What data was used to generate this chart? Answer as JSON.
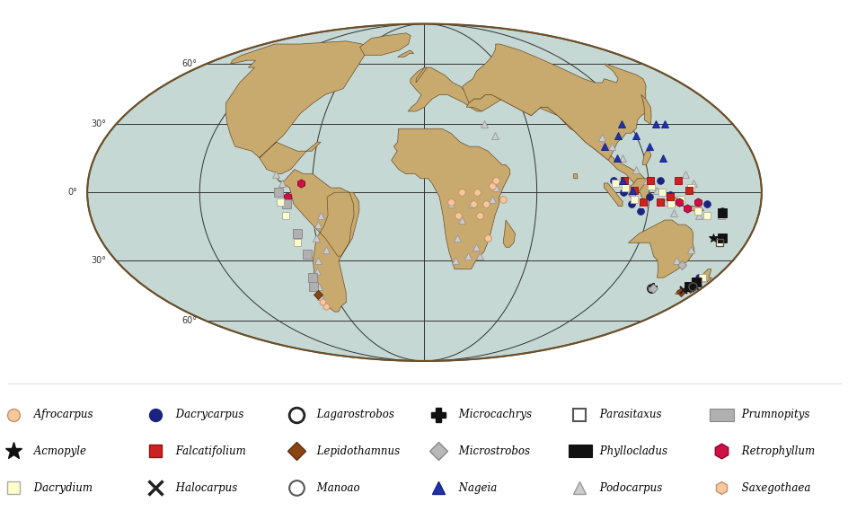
{
  "background_ocean": "#c5d8d4",
  "land_color": "#c8a96e",
  "land_edge_color": "#6b4f2a",
  "grid_color": "#333333",
  "legend_items": [
    {
      "name": "Afrocarpus",
      "marker": "o",
      "color": "#f5c89a",
      "mec": "#c8906a",
      "ms": 10,
      "mew": 1.0
    },
    {
      "name": "Dacrycarpus",
      "marker": "o",
      "color": "#1a237e",
      "mec": "#1a237e",
      "ms": 10,
      "mew": 1.0
    },
    {
      "name": "Lagarostrobos",
      "marker": "o",
      "color": "none",
      "mec": "#222222",
      "ms": 12,
      "mew": 2.0
    },
    {
      "name": "Microcachrys",
      "marker": "P",
      "color": "#111111",
      "mec": "#111111",
      "ms": 11,
      "mew": 1.0
    },
    {
      "name": "Parasitaxus",
      "marker": "s",
      "color": "none",
      "mec": "#555555",
      "ms": 10,
      "mew": 1.5
    },
    {
      "name": "Prumnopitys",
      "marker": "s",
      "color": "#b0b0b0",
      "mec": "#888888",
      "ms": 14,
      "mew": 1.0
    },
    {
      "name": "Acmopyle",
      "marker": "*",
      "color": "#111111",
      "mec": "#111111",
      "ms": 14,
      "mew": 1.0
    },
    {
      "name": "Falcatifolium",
      "marker": "s",
      "color": "#cc2222",
      "mec": "#991111",
      "ms": 10,
      "mew": 1.0
    },
    {
      "name": "Lepidothamnus",
      "marker": "D",
      "color": "#8b4513",
      "mec": "#5a2d0c",
      "ms": 10,
      "mew": 1.0
    },
    {
      "name": "Microstrobos",
      "marker": "D",
      "color": "#b8b8b8",
      "mec": "#888888",
      "ms": 10,
      "mew": 1.0
    },
    {
      "name": "Phyllocladus",
      "marker": "s",
      "color": "#111111",
      "mec": "#111111",
      "ms": 14,
      "mew": 1.0
    },
    {
      "name": "Retrophyllum",
      "marker": "h",
      "color": "#cc1144",
      "mec": "#990033",
      "ms": 12,
      "mew": 1.0
    },
    {
      "name": "Dacrydium",
      "marker": "s",
      "color": "#ffffcc",
      "mec": "#aaaaaa",
      "ms": 10,
      "mew": 1.0
    },
    {
      "name": "Halocarpus",
      "marker": "x",
      "color": "#222222",
      "mec": "#222222",
      "ms": 11,
      "mew": 2.5
    },
    {
      "name": "Manoao",
      "marker": "o",
      "color": "none",
      "mec": "#555555",
      "ms": 12,
      "mew": 1.5
    },
    {
      "name": "Nageia",
      "marker": "^",
      "color": "#2233aa",
      "mec": "#112288",
      "ms": 10,
      "mew": 1.0
    },
    {
      "name": "Podocarpus",
      "marker": "^",
      "color": "#cccccc",
      "mec": "#999999",
      "ms": 10,
      "mew": 1.0
    },
    {
      "name": "Saxegothaea",
      "marker": "h",
      "color": "#f5c8a0",
      "mec": "#c8906a",
      "ms": 10,
      "mew": 1.0
    }
  ],
  "species_points": [
    {
      "s": "Podocarpus",
      "lon": -80,
      "lat": 8
    },
    {
      "s": "Podocarpus",
      "lon": -76,
      "lat": 4
    },
    {
      "s": "Retrophyllum",
      "lon": -73,
      "lat": -2
    },
    {
      "s": "Retrophyllum",
      "lon": -66,
      "lat": 4
    },
    {
      "s": "Podocarpus",
      "lon": -56,
      "lat": -10
    },
    {
      "s": "Podocarpus",
      "lon": -58,
      "lat": -14
    },
    {
      "s": "Podocarpus",
      "lon": -60,
      "lat": -20
    },
    {
      "s": "Podocarpus",
      "lon": -56,
      "lat": -25
    },
    {
      "s": "Podocarpus",
      "lon": -62,
      "lat": -30
    },
    {
      "s": "Podocarpus",
      "lon": -65,
      "lat": -35
    },
    {
      "s": "Podocarpus",
      "lon": -68,
      "lat": -42
    },
    {
      "s": "Podocarpus",
      "lon": -70,
      "lat": -47
    },
    {
      "s": "Prumnopitys",
      "lon": -78,
      "lat": 0
    },
    {
      "s": "Prumnopitys",
      "lon": -74,
      "lat": -5
    },
    {
      "s": "Prumnopitys",
      "lon": -70,
      "lat": -18
    },
    {
      "s": "Prumnopitys",
      "lon": -67,
      "lat": -27
    },
    {
      "s": "Prumnopitys",
      "lon": -69,
      "lat": -38
    },
    {
      "s": "Prumnopitys",
      "lon": -71,
      "lat": -42
    },
    {
      "s": "Saxegothaea",
      "lon": -71,
      "lat": -52
    },
    {
      "s": "Lepidothamnus",
      "lon": -71,
      "lat": -46
    },
    {
      "s": "Dacrydium",
      "lon": -77,
      "lat": -4
    },
    {
      "s": "Dacrydium",
      "lon": -75,
      "lat": -10
    },
    {
      "s": "Dacrydium",
      "lon": -71,
      "lat": -22
    },
    {
      "s": "Podocarpus",
      "lon": 18,
      "lat": -30
    },
    {
      "s": "Podocarpus",
      "lon": 25,
      "lat": -28
    },
    {
      "s": "Podocarpus",
      "lon": 29,
      "lat": -24
    },
    {
      "s": "Podocarpus",
      "lon": 32,
      "lat": -28
    },
    {
      "s": "Podocarpus",
      "lon": 18,
      "lat": -20
    },
    {
      "s": "Podocarpus",
      "lon": 20,
      "lat": -12
    },
    {
      "s": "Podocarpus",
      "lon": 25,
      "lat": -5
    },
    {
      "s": "Podocarpus",
      "lon": 14,
      "lat": -5
    },
    {
      "s": "Podocarpus",
      "lon": 36,
      "lat": -3
    },
    {
      "s": "Podocarpus",
      "lon": 38,
      "lat": 2
    },
    {
      "s": "Afrocarpus",
      "lon": 20,
      "lat": 0
    },
    {
      "s": "Afrocarpus",
      "lon": 26,
      "lat": -5
    },
    {
      "s": "Afrocarpus",
      "lon": 30,
      "lat": -10
    },
    {
      "s": "Afrocarpus",
      "lon": 35,
      "lat": -20
    },
    {
      "s": "Afrocarpus",
      "lon": 33,
      "lat": -5
    },
    {
      "s": "Afrocarpus",
      "lon": 28,
      "lat": 0
    },
    {
      "s": "Afrocarpus",
      "lon": 36,
      "lat": 3
    },
    {
      "s": "Afrocarpus",
      "lon": 38,
      "lat": 5
    },
    {
      "s": "Afrocarpus",
      "lon": 14,
      "lat": -4
    },
    {
      "s": "Afrocarpus",
      "lon": 18,
      "lat": -10
    },
    {
      "s": "Afrocarpus",
      "lon": 42,
      "lat": -3
    },
    {
      "s": "Podocarpus",
      "lon": 35,
      "lat": 30
    },
    {
      "s": "Podocarpus",
      "lon": 40,
      "lat": 25
    },
    {
      "s": "Podocarpus",
      "lon": 100,
      "lat": 24
    },
    {
      "s": "Podocarpus",
      "lon": 104,
      "lat": 20
    },
    {
      "s": "Podocarpus",
      "lon": 108,
      "lat": 15
    },
    {
      "s": "Podocarpus",
      "lon": 114,
      "lat": 10
    },
    {
      "s": "Podocarpus",
      "lon": 119,
      "lat": 5
    },
    {
      "s": "Podocarpus",
      "lon": 124,
      "lat": 1
    },
    {
      "s": "Podocarpus",
      "lon": 129,
      "lat": -4
    },
    {
      "s": "Podocarpus",
      "lon": 134,
      "lat": -9
    },
    {
      "s": "Podocarpus",
      "lon": 140,
      "lat": 8
    },
    {
      "s": "Podocarpus",
      "lon": 144,
      "lat": 4
    },
    {
      "s": "Podocarpus",
      "lon": 148,
      "lat": -10
    },
    {
      "s": "Podocarpus",
      "lon": 151,
      "lat": -25
    },
    {
      "s": "Podocarpus",
      "lon": 147,
      "lat": -30
    },
    {
      "s": "Podocarpus",
      "lon": 170,
      "lat": -40
    },
    {
      "s": "Podocarpus",
      "lon": 172,
      "lat": -38
    },
    {
      "s": "Podocarpus",
      "lon": 165,
      "lat": -22
    },
    {
      "s": "Podocarpus",
      "lon": 160,
      "lat": -10
    },
    {
      "s": "Dacrycarpus",
      "lon": 101,
      "lat": 5
    },
    {
      "s": "Dacrycarpus",
      "lon": 106,
      "lat": 0
    },
    {
      "s": "Dacrycarpus",
      "lon": 111,
      "lat": -5
    },
    {
      "s": "Dacrycarpus",
      "lon": 116,
      "lat": -8
    },
    {
      "s": "Dacrycarpus",
      "lon": 120,
      "lat": -2
    },
    {
      "s": "Dacrycarpus",
      "lon": 126,
      "lat": 5
    },
    {
      "s": "Dacrycarpus",
      "lon": 131,
      "lat": -1
    },
    {
      "s": "Dacrycarpus",
      "lon": 136,
      "lat": -4
    },
    {
      "s": "Dacrycarpus",
      "lon": 141,
      "lat": 1
    },
    {
      "s": "Dacrycarpus",
      "lon": 146,
      "lat": -4
    },
    {
      "s": "Dacrycarpus",
      "lon": 151,
      "lat": -5
    },
    {
      "s": "Dacrycarpus",
      "lon": 170,
      "lat": -38
    },
    {
      "s": "Dacrycarpus",
      "lon": 172,
      "lat": -42
    },
    {
      "s": "Dacrycarpus",
      "lon": 165,
      "lat": -20
    },
    {
      "s": "Dacrycarpus",
      "lon": 160,
      "lat": -8
    },
    {
      "s": "Dacrydium",
      "lon": 102,
      "lat": 4
    },
    {
      "s": "Dacrydium",
      "lon": 107,
      "lat": 2
    },
    {
      "s": "Dacrydium",
      "lon": 112,
      "lat": -3
    },
    {
      "s": "Dacrydium",
      "lon": 117,
      "lat": -5
    },
    {
      "s": "Dacrydium",
      "lon": 121,
      "lat": 3
    },
    {
      "s": "Dacrydium",
      "lon": 127,
      "lat": 0
    },
    {
      "s": "Dacrydium",
      "lon": 132,
      "lat": -5
    },
    {
      "s": "Dacrydium",
      "lon": 137,
      "lat": -3
    },
    {
      "s": "Dacrydium",
      "lon": 142,
      "lat": 2
    },
    {
      "s": "Dacrydium",
      "lon": 147,
      "lat": -8
    },
    {
      "s": "Dacrydium",
      "lon": 152,
      "lat": -10
    },
    {
      "s": "Dacrydium",
      "lon": 170,
      "lat": -40
    },
    {
      "s": "Dacrydium",
      "lon": 172,
      "lat": -38
    },
    {
      "s": "Dacrydium",
      "lon": 165,
      "lat": -22
    },
    {
      "s": "Falcatifolium",
      "lon": 107,
      "lat": 5
    },
    {
      "s": "Falcatifolium",
      "lon": 112,
      "lat": 1
    },
    {
      "s": "Falcatifolium",
      "lon": 117,
      "lat": -4
    },
    {
      "s": "Falcatifolium",
      "lon": 121,
      "lat": 5
    },
    {
      "s": "Falcatifolium",
      "lon": 126,
      "lat": -4
    },
    {
      "s": "Falcatifolium",
      "lon": 131,
      "lat": -2
    },
    {
      "s": "Falcatifolium",
      "lon": 136,
      "lat": 5
    },
    {
      "s": "Falcatifolium",
      "lon": 141,
      "lat": 1
    },
    {
      "s": "Nageia",
      "lon": 100,
      "lat": 20
    },
    {
      "s": "Nageia",
      "lon": 105,
      "lat": 15
    },
    {
      "s": "Nageia",
      "lon": 110,
      "lat": 25
    },
    {
      "s": "Nageia",
      "lon": 115,
      "lat": 30
    },
    {
      "s": "Nageia",
      "lon": 120,
      "lat": 25
    },
    {
      "s": "Nageia",
      "lon": 125,
      "lat": 20
    },
    {
      "s": "Nageia",
      "lon": 130,
      "lat": 15
    },
    {
      "s": "Nageia",
      "lon": 135,
      "lat": 30
    },
    {
      "s": "Nageia",
      "lon": 140,
      "lat": 30
    },
    {
      "s": "Nageia",
      "lon": 106,
      "lat": 5
    },
    {
      "s": "Nageia",
      "lon": 111,
      "lat": 1
    },
    {
      "s": "Retrophyllum",
      "lon": 136,
      "lat": -4
    },
    {
      "s": "Retrophyllum",
      "lon": 141,
      "lat": -7
    },
    {
      "s": "Retrophyllum",
      "lon": 146,
      "lat": -4
    },
    {
      "s": "Lepidothamnus",
      "lon": 170,
      "lat": -45
    },
    {
      "s": "Lepidothamnus",
      "lon": 172,
      "lat": -43
    },
    {
      "s": "Prumnopitys",
      "lon": 170,
      "lat": -42
    },
    {
      "s": "Prumnopitys",
      "lon": 172,
      "lat": -40
    },
    {
      "s": "Halocarpus",
      "lon": 170,
      "lat": -44
    },
    {
      "s": "Halocarpus",
      "lon": 172,
      "lat": -43
    },
    {
      "s": "Halocarpus",
      "lon": 174,
      "lat": -42
    },
    {
      "s": "Lagarostrobos",
      "lon": 147,
      "lat": -43
    },
    {
      "s": "Microcachrys",
      "lon": 147,
      "lat": -42
    },
    {
      "s": "Microstrobos",
      "lon": 148,
      "lat": -43
    },
    {
      "s": "Microstrobos",
      "lon": 152,
      "lat": -32
    },
    {
      "s": "Phyllocladus",
      "lon": 170,
      "lat": -42
    },
    {
      "s": "Phyllocladus",
      "lon": 171,
      "lat": -40
    },
    {
      "s": "Phyllocladus",
      "lon": 165,
      "lat": -20
    },
    {
      "s": "Phyllocladus",
      "lon": 160,
      "lat": -9
    },
    {
      "s": "Parasitaxus",
      "lon": 165,
      "lat": -22
    },
    {
      "s": "Saxegothaea",
      "lon": -72,
      "lat": -50
    },
    {
      "s": "Manoao",
      "lon": 172,
      "lat": -42
    },
    {
      "s": "Acmopyle",
      "lon": 160,
      "lat": -20
    }
  ],
  "legend_order": [
    "Afrocarpus",
    "Dacrycarpus",
    "Lagarostrobos",
    "Microcachrys",
    "Parasitaxus",
    "Prumnopitys",
    "Acmopyle",
    "Falcatifolium",
    "Lepidothamnus",
    "Microstrobos",
    "Phyllocladus",
    "Retrophyllum",
    "Dacrydium",
    "Halocarpus",
    "Manoao",
    "Nageia",
    "Podocarpus",
    "Saxegothaea"
  ]
}
